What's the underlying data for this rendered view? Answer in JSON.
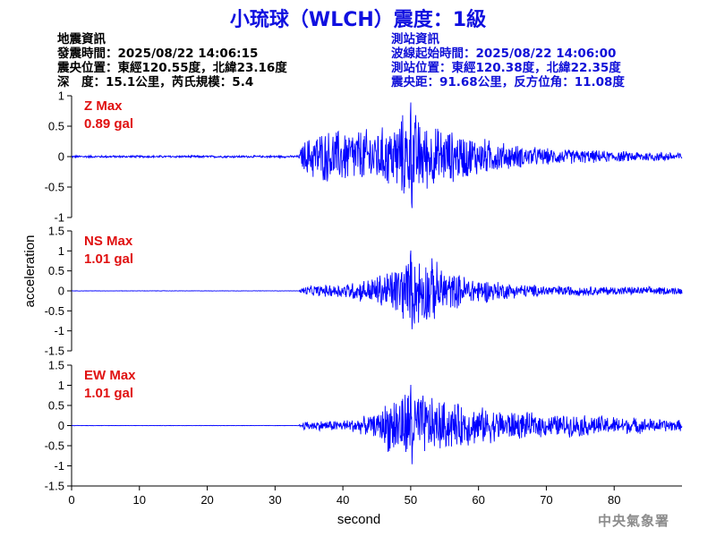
{
  "title": "小琉球（WLCH）震度：1級",
  "quake_info": {
    "heading": "地震資訊",
    "time": "發震時間：2025/08/22 14:06:15",
    "location": "震央位置：東經120.55度，北緯23.16度",
    "depth_magnitude": "深　度：15.1公里，芮氏規模：5.4"
  },
  "station_info": {
    "heading": "測站資訊",
    "wave_start": "波線起始時間：2025/08/22 14:06:00",
    "location": "測站位置：東經120.38度，北緯22.35度",
    "distance": "震央距：91.68公里，反方位角：11.08度"
  },
  "credit": "中央氣象署",
  "colors": {
    "trace": "#0000ff",
    "max_label": "#e01010",
    "title": "#1010e0"
  },
  "chart_data": {
    "type": "line",
    "xlabel": "second",
    "ylabel": "acceleration",
    "xlim": [
      0,
      90
    ],
    "xticks": [
      0,
      10,
      20,
      30,
      40,
      50,
      60,
      70,
      80
    ],
    "grid": false,
    "panels": [
      {
        "name": "Z",
        "max_label": "Z Max",
        "max_value": "0.89 gal",
        "peak": 0.89,
        "ylim": [
          -1,
          1
        ],
        "yticks": [
          -1,
          -0.5,
          0,
          0.5,
          1
        ],
        "envelope": [
          [
            0,
            0.02
          ],
          [
            33.5,
            0.02
          ],
          [
            34,
            0.25
          ],
          [
            36,
            0.45
          ],
          [
            40,
            0.5
          ],
          [
            44,
            0.5
          ],
          [
            47,
            0.55
          ],
          [
            50,
            0.89
          ],
          [
            52,
            0.6
          ],
          [
            55,
            0.5
          ],
          [
            60,
            0.35
          ],
          [
            65,
            0.22
          ],
          [
            70,
            0.15
          ],
          [
            80,
            0.1
          ],
          [
            90,
            0.08
          ]
        ]
      },
      {
        "name": "NS",
        "max_label": "NS Max",
        "max_value": "1.01 gal",
        "peak": 1.01,
        "ylim": [
          -1.5,
          1.5
        ],
        "yticks": [
          -1.5,
          -1,
          -0.5,
          0,
          0.5,
          1,
          1.5
        ],
        "envelope": [
          [
            0,
            0.005
          ],
          [
            33.5,
            0.005
          ],
          [
            34,
            0.12
          ],
          [
            40,
            0.2
          ],
          [
            44,
            0.35
          ],
          [
            47,
            0.6
          ],
          [
            50,
            1.0
          ],
          [
            53,
            0.9
          ],
          [
            56,
            0.5
          ],
          [
            60,
            0.35
          ],
          [
            65,
            0.2
          ],
          [
            70,
            0.15
          ],
          [
            80,
            0.12
          ],
          [
            90,
            0.1
          ]
        ]
      },
      {
        "name": "EW",
        "max_label": "EW Max",
        "max_value": "1.01 gal",
        "peak": 1.01,
        "ylim": [
          -1.5,
          1.5
        ],
        "yticks": [
          -1.5,
          -1,
          -0.5,
          0,
          0.5,
          1,
          1.5
        ],
        "envelope": [
          [
            0,
            0.005
          ],
          [
            33.5,
            0.005
          ],
          [
            34,
            0.12
          ],
          [
            40,
            0.15
          ],
          [
            45,
            0.3
          ],
          [
            47,
            0.8
          ],
          [
            50,
            1.01
          ],
          [
            53,
            0.75
          ],
          [
            57,
            0.6
          ],
          [
            60,
            0.5
          ],
          [
            65,
            0.4
          ],
          [
            70,
            0.3
          ],
          [
            75,
            0.3
          ],
          [
            80,
            0.25
          ],
          [
            90,
            0.15
          ]
        ]
      }
    ]
  }
}
